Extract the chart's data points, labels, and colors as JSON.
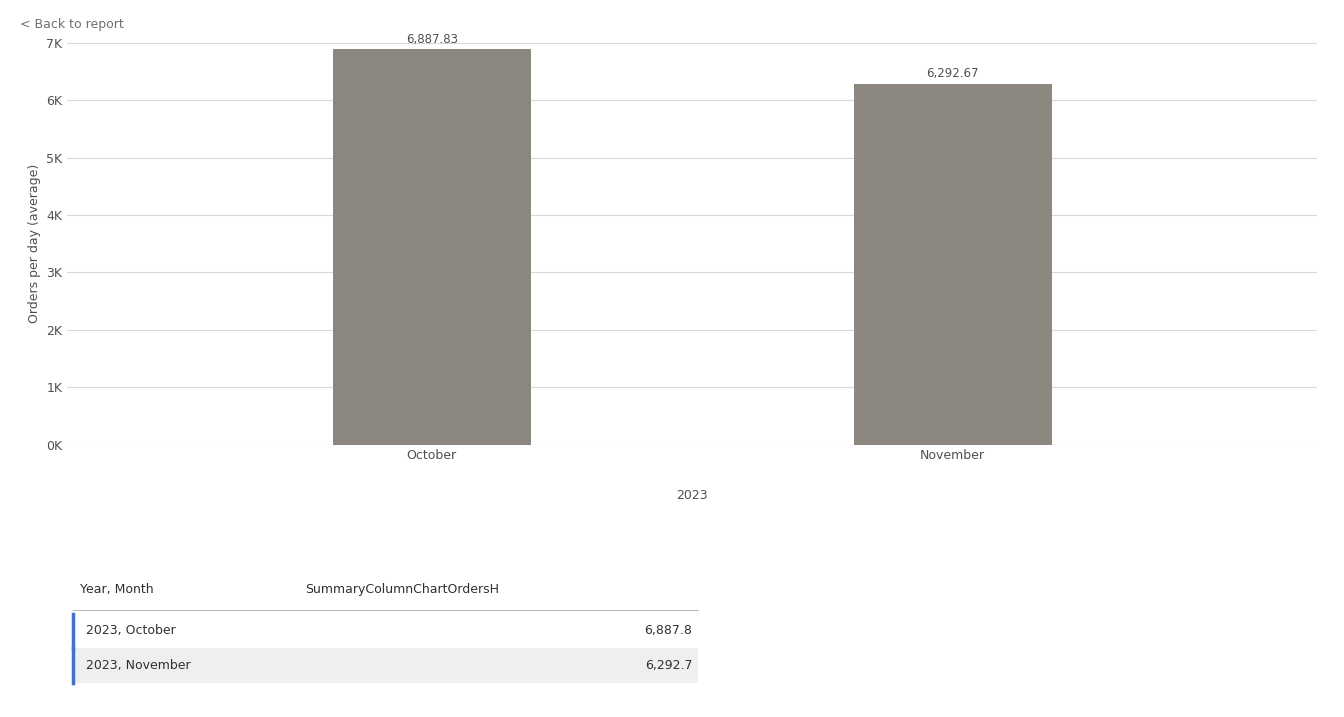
{
  "categories": [
    "October",
    "November"
  ],
  "values": [
    6887.83,
    6292.67
  ],
  "bar_color": "#8c8880",
  "ylabel": "Orders per day (average)",
  "xlabel_group": "2023",
  "ylim": [
    0,
    7000
  ],
  "yticks": [
    0,
    1000,
    2000,
    3000,
    4000,
    5000,
    6000,
    7000
  ],
  "ytick_labels": [
    "0K",
    "1K",
    "2K",
    "3K",
    "4K",
    "5K",
    "6K",
    "7K"
  ],
  "bar_labels": [
    "6,887.83",
    "6,292.67"
  ],
  "background_color": "#ffffff",
  "grid_color": "#d9d9d9",
  "back_to_report_text": "< Back to report",
  "table_header": [
    "Year, Month",
    "SummaryColumnChartOrdersH"
  ],
  "table_rows": [
    [
      "2023, October",
      "6,887.8"
    ],
    [
      "2023, November",
      "6,292.7"
    ]
  ],
  "table_row_colors": [
    "#ffffff",
    "#efefef"
  ],
  "table_border_color": "#4472c4",
  "font_color": "#505050",
  "label_font_size": 9,
  "axis_font_size": 9,
  "bar_label_font_size": 8.5
}
